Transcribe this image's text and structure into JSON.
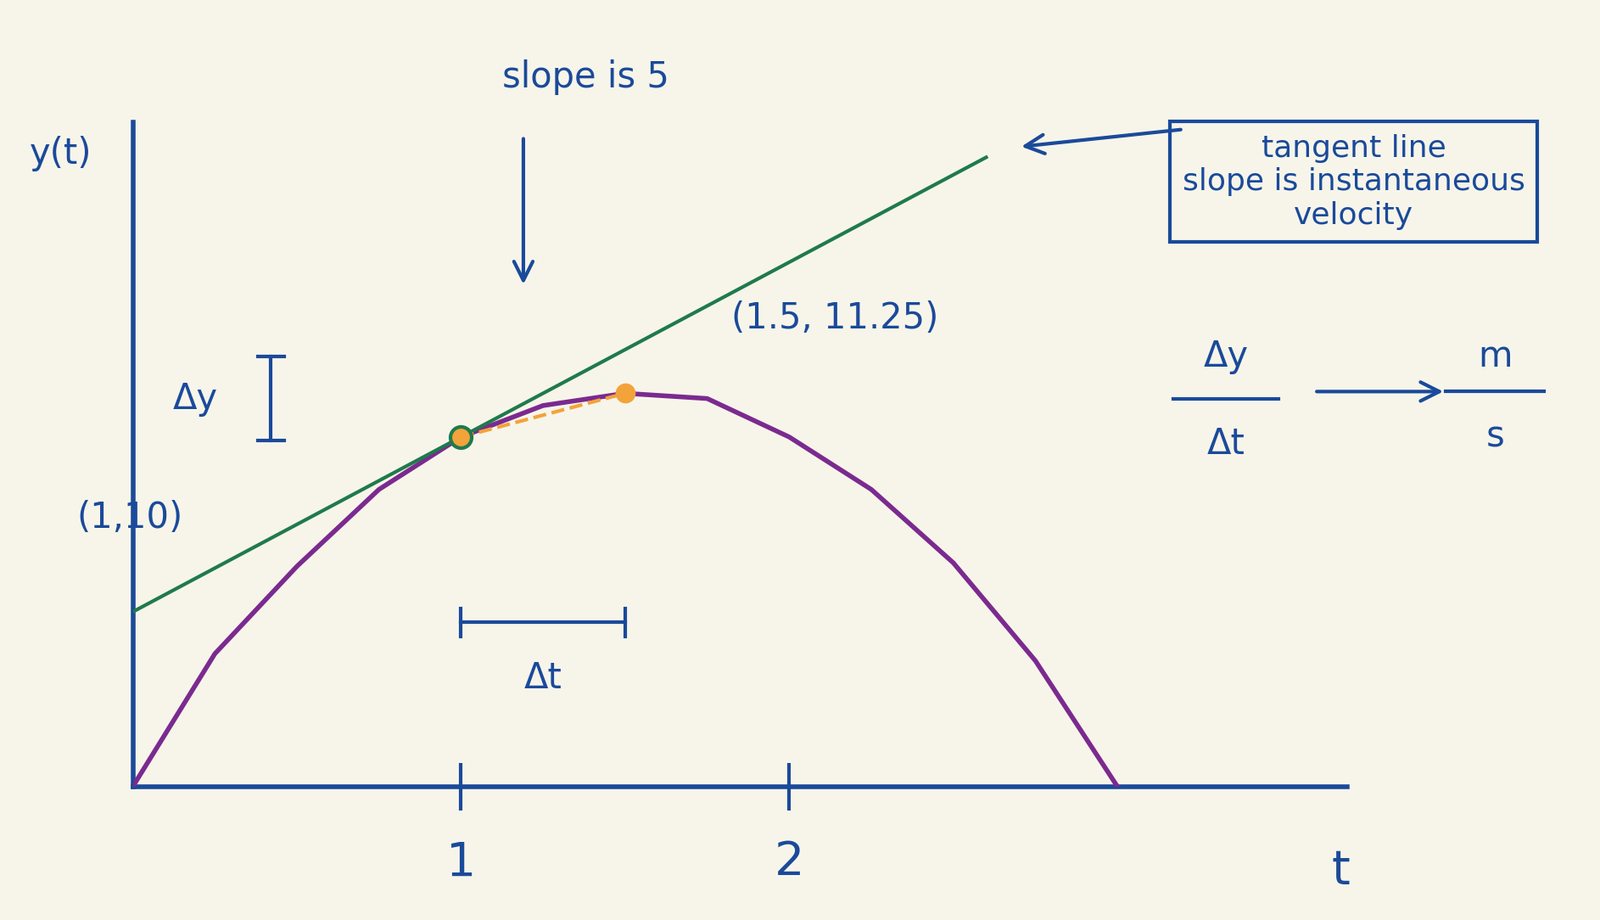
{
  "chart_data": {
    "type": "line",
    "x_label": "t",
    "y_label": "y(t)",
    "xlim": [
      0,
      3.7
    ],
    "ylim": [
      0,
      19
    ],
    "xticks": [
      1,
      2
    ],
    "tick_labels": "x",
    "series": [
      {
        "type": "line",
        "color": "#7b2a8f",
        "line_style": "solid",
        "x": [
          0,
          0.25,
          0.5,
          0.75,
          1,
          1.25,
          1.5,
          1.75,
          2,
          2.25,
          2.5,
          2.75,
          3
        ],
        "values": [
          0,
          3.8,
          6.3,
          8.5,
          10,
          10.9,
          11.25,
          11.1,
          10.0,
          8.5,
          6.4,
          3.6,
          0
        ]
      },
      {
        "type": "line",
        "color": "#1f7a4c",
        "line_style": "solid",
        "x": [
          0,
          2.6
        ],
        "values": [
          5,
          18
        ]
      },
      {
        "type": "line",
        "color": "#f2a33a",
        "line_style": "dashed",
        "marker": "o",
        "x": [
          1,
          1.5
        ],
        "values": [
          10,
          11.25
        ]
      }
    ],
    "points": [
      {
        "x": 1,
        "y": 10,
        "label": "(1,10)"
      },
      {
        "x": 1.5,
        "y": 11.25,
        "label": "(1.5, 11.25)"
      }
    ],
    "slope_text": "slope is 5",
    "box_text": "tangent line\nslope is instantaneous\nvelocity",
    "delta_y": "Δy",
    "delta_t": "Δt",
    "fraction": {
      "numerator": "Δy",
      "denominator": "Δt",
      "units_numerator": "m",
      "units_denominator": "s"
    }
  }
}
